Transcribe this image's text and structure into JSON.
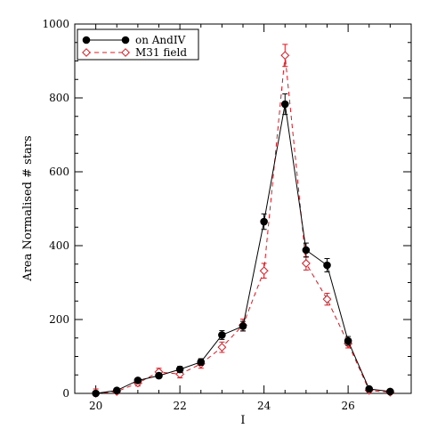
{
  "chart_data": {
    "type": "line",
    "xlabel": "I",
    "ylabel": "Area Normalised # stars",
    "xlim": [
      19.5,
      27.5
    ],
    "ylim": [
      0,
      1000
    ],
    "xticks": [
      20,
      22,
      24,
      26
    ],
    "yticks": [
      0,
      200,
      400,
      600,
      800,
      1000
    ],
    "x_minor_step": 0.5,
    "y_minor_step": 50,
    "grid": false,
    "legend_position": "top-left",
    "series": [
      {
        "name": "on AndIV",
        "color": "#000000",
        "marker": "filled-circle",
        "line": "solid",
        "x": [
          20.0,
          20.5,
          21.0,
          21.5,
          22.0,
          22.5,
          23.0,
          23.5,
          24.0,
          24.5,
          25.0,
          25.5,
          26.0,
          26.5,
          27.0
        ],
        "y": [
          0,
          8,
          35,
          48,
          65,
          85,
          158,
          182,
          465,
          783,
          388,
          347,
          142,
          12,
          5
        ],
        "err": [
          0,
          3,
          6,
          7,
          8,
          9,
          12,
          13,
          21,
          28,
          19,
          18,
          12,
          3,
          2
        ]
      },
      {
        "name": "M31 field",
        "color": "#e8141e",
        "marker": "open-diamond",
        "line": "dashed",
        "x": [
          20.0,
          20.5,
          21.0,
          21.5,
          22.0,
          22.5,
          23.0,
          23.5,
          24.0,
          24.5,
          25.0,
          25.5,
          26.0,
          26.5,
          27.0
        ],
        "y": [
          0,
          5,
          28,
          58,
          52,
          80,
          125,
          185,
          332,
          915,
          352,
          255,
          135,
          8,
          3
        ],
        "err": [
          12,
          4,
          8,
          10,
          10,
          12,
          14,
          16,
          20,
          30,
          18,
          16,
          12,
          3,
          2
        ]
      }
    ]
  }
}
